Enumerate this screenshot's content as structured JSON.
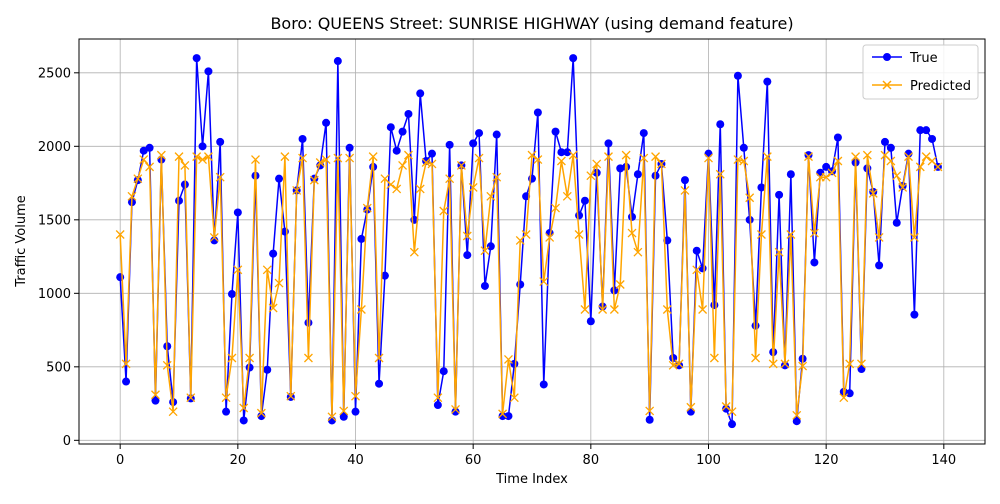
{
  "chart_data": {
    "type": "line",
    "title": "Boro: QUEENS Street: SUNRISE HIGHWAY (using demand feature)",
    "xlabel": "Time Index",
    "ylabel": "Traffic Volume",
    "xlim": [
      -7,
      147
    ],
    "ylim": [
      -25,
      2730
    ],
    "xticks": [
      0,
      20,
      40,
      60,
      80,
      100,
      120,
      140
    ],
    "yticks": [
      0,
      500,
      1000,
      1500,
      2000,
      2500
    ],
    "grid": true,
    "legend": "upper right",
    "series": [
      {
        "name": "True",
        "color": "#0000ff",
        "marker": "circle",
        "values": [
          1110,
          400,
          1620,
          1770,
          1970,
          1990,
          270,
          1910,
          640,
          260,
          1630,
          1740,
          285,
          2600,
          2000,
          2510,
          1360,
          2030,
          195,
          995,
          1550,
          135,
          495,
          1800,
          165,
          480,
          1270,
          1780,
          1420,
          295,
          1700,
          2050,
          800,
          1780,
          1870,
          2160,
          135,
          2580,
          160,
          1990,
          195,
          1370,
          1570,
          1860,
          385,
          1120,
          2130,
          1970,
          2100,
          2220,
          1500,
          2360,
          1900,
          1950,
          240,
          470,
          2010,
          195,
          1870,
          1260,
          2020,
          2090,
          1050,
          1320,
          2080,
          165,
          165,
          520,
          1060,
          1660,
          1780,
          2230,
          380,
          1410,
          2100,
          1960,
          1960,
          2600,
          1530,
          1630,
          810,
          1820,
          910,
          2020,
          1020,
          1850,
          1860,
          1520,
          1810,
          2090,
          140,
          1800,
          1880,
          1360,
          560,
          510,
          1770,
          195,
          1290,
          1170,
          1950,
          920,
          2150,
          215,
          110,
          2480,
          1990,
          1500,
          780,
          1720,
          2440,
          600,
          1670,
          510,
          1810,
          130,
          555,
          1940,
          1210,
          1820,
          1860,
          1830,
          2060,
          330,
          320,
          1890,
          485,
          1850,
          1690,
          1190,
          2030,
          1990,
          1480,
          1730,
          1950,
          855,
          2110,
          2110,
          2050,
          1860
        ]
      },
      {
        "name": "Predicted",
        "color": "#ffa500",
        "marker": "x",
        "values": [
          1400,
          520,
          1660,
          1780,
          1910,
          1860,
          310,
          1940,
          510,
          195,
          1930,
          1870,
          290,
          1930,
          1910,
          1930,
          1380,
          1790,
          290,
          560,
          1160,
          220,
          560,
          1910,
          185,
          1160,
          900,
          1070,
          1930,
          300,
          1700,
          1920,
          560,
          1770,
          1890,
          1910,
          160,
          1920,
          200,
          1920,
          300,
          890,
          1580,
          1930,
          560,
          1780,
          1740,
          1710,
          1870,
          1940,
          1280,
          1710,
          1890,
          1880,
          290,
          1560,
          1780,
          210,
          1870,
          1390,
          1720,
          1920,
          1290,
          1660,
          1790,
          180,
          550,
          290,
          1360,
          1400,
          1940,
          1910,
          1080,
          1380,
          1580,
          1900,
          1660,
          1940,
          1400,
          890,
          1800,
          1880,
          890,
          1930,
          890,
          1060,
          1940,
          1410,
          1280,
          1920,
          200,
          1930,
          1880,
          890,
          510,
          520,
          1700,
          225,
          1160,
          890,
          1920,
          560,
          1810,
          230,
          195,
          1910,
          1900,
          1650,
          560,
          1400,
          1930,
          520,
          1280,
          520,
          1400,
          170,
          505,
          1930,
          1410,
          1790,
          1790,
          1820,
          1900,
          290,
          520,
          1930,
          520,
          1940,
          1680,
          1380,
          1940,
          1900,
          1800,
          1720,
          1930,
          1380,
          1860,
          1930,
          1900,
          1860
        ]
      }
    ]
  }
}
